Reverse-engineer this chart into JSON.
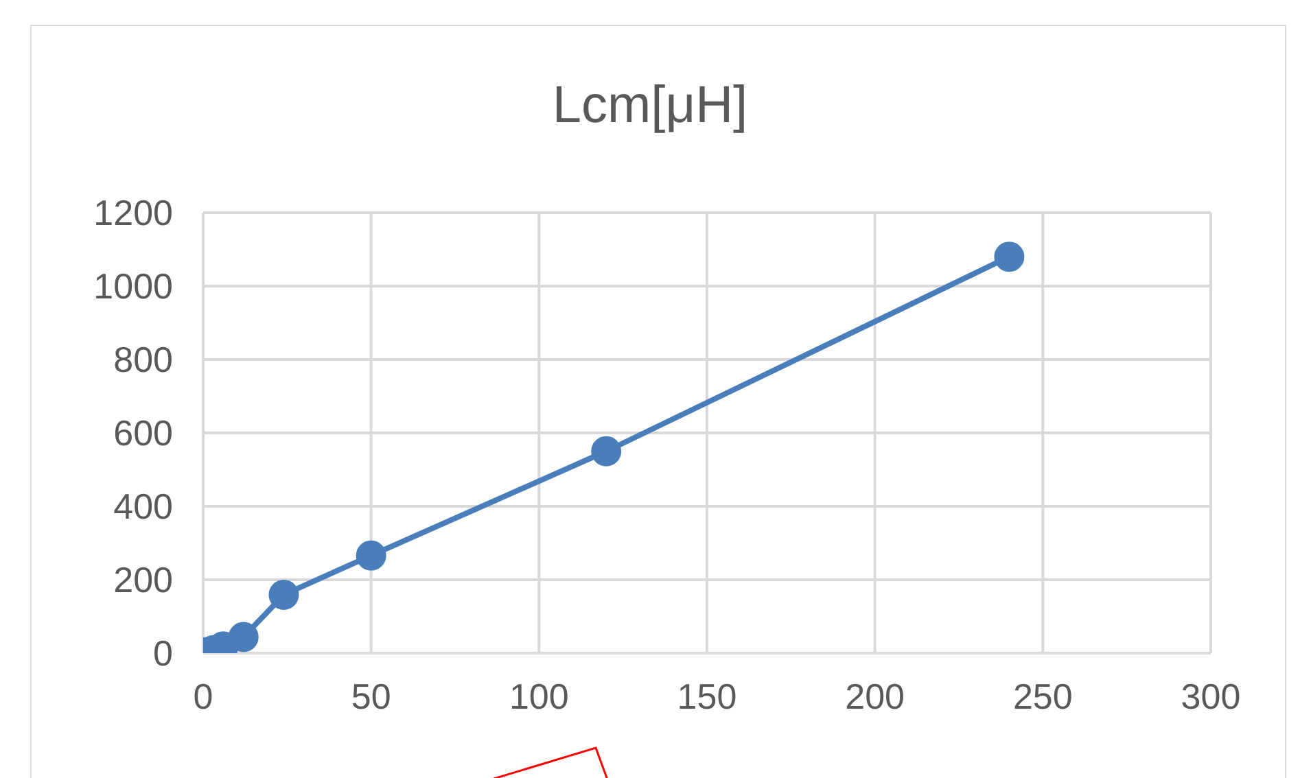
{
  "chart_data": {
    "type": "line",
    "title": "Lcm[μH]",
    "x": [
      1,
      3,
      6,
      12,
      24,
      50,
      120,
      240
    ],
    "series": [
      {
        "color": "#4a7ebb",
        "values": [
          3,
          8,
          18,
          44,
          159,
          266,
          550,
          1080
        ]
      }
    ],
    "xlim": [
      0,
      300
    ],
    "xticks": [
      0,
      50,
      100,
      150,
      200,
      250,
      300
    ],
    "ylim": [
      0,
      1200
    ],
    "yticks": [
      0,
      200,
      400,
      600,
      800,
      1000,
      1200
    ],
    "grid": true,
    "legend": false,
    "marker": "circle",
    "line_style": "solid"
  }
}
